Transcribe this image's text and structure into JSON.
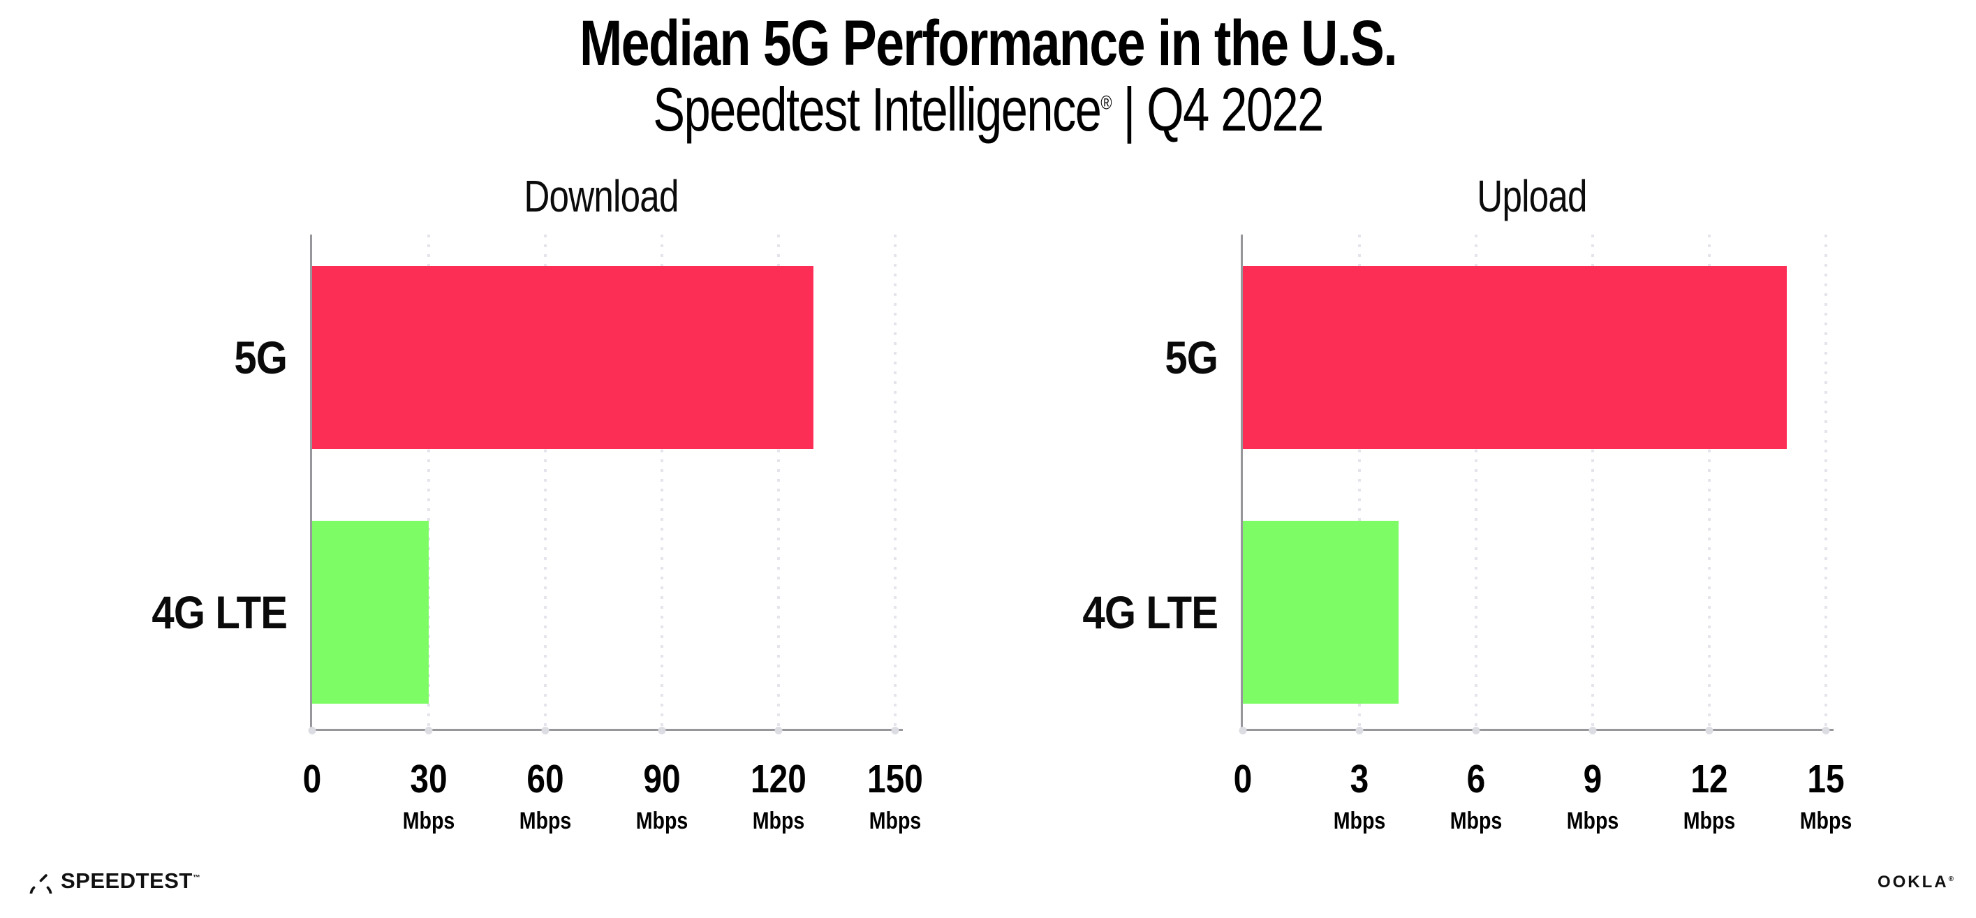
{
  "header": {
    "title": "Median 5G Performance in the U.S.",
    "subtitle_brand": "Speedtest Intelligence",
    "subtitle_reg": "®",
    "subtitle_rest": " | Q4 2022"
  },
  "chart_data": [
    {
      "type": "bar",
      "orientation": "horizontal",
      "title": "Download",
      "categories": [
        "5G",
        "4G LTE"
      ],
      "values": [
        129,
        30
      ],
      "value_unit": "Mbps",
      "xlim": [
        0,
        150
      ],
      "xticks": [
        0,
        30,
        60,
        90,
        120,
        150
      ],
      "xtick_unit": "Mbps",
      "xtick_unit_shown_on_zero": false,
      "bar_colors": [
        "#fc2e56",
        "#7efc66"
      ],
      "grid": "vertical dotted gridline at each tick",
      "legend": "none"
    },
    {
      "type": "bar",
      "orientation": "horizontal",
      "title": "Upload",
      "categories": [
        "5G",
        "4G LTE"
      ],
      "values": [
        14,
        4
      ],
      "value_unit": "Mbps",
      "xlim": [
        0,
        15
      ],
      "xticks": [
        0,
        3,
        6,
        9,
        12,
        15
      ],
      "xtick_unit": "Mbps",
      "xtick_unit_shown_on_zero": false,
      "bar_colors": [
        "#fc2e56",
        "#7efc66"
      ],
      "grid": "vertical dotted gridline at each tick",
      "legend": "none"
    }
  ],
  "footer": {
    "speedtest_label": "SPEEDTEST",
    "speedtest_mark": "™",
    "ookla_label": "OOKLA",
    "ookla_mark": "®"
  },
  "colors": {
    "bar_5g": "#fc2e56",
    "bar_4g_lte": "#7efc66",
    "axis": "#97979b",
    "gridline": "#e4e4ec",
    "tick_dot": "#dcdce3",
    "text": "#0d0d0d",
    "background": "#ffffff"
  }
}
